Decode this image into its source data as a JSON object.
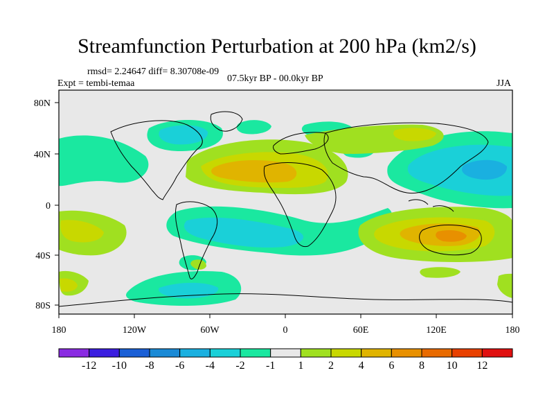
{
  "title": "Streamfunction Perturbation at 200 hPa (km2/s)",
  "stats": "rmsd= 2.24647 diff= 8.30708e-09",
  "experiment": "Expt = tembi-temaa",
  "period": "07.5kyr BP - 00.0kyr BP",
  "season": "JJA",
  "lat_ticks": [
    "80N",
    "40N",
    "0",
    "40S",
    "80S"
  ],
  "lon_ticks": [
    "180",
    "120W",
    "60W",
    "0",
    "60E",
    "120E",
    "180"
  ],
  "colorbar": {
    "labels": [
      "-12",
      "-10",
      "-8",
      "-6",
      "-4",
      "-2",
      "-1",
      "1",
      "2",
      "4",
      "6",
      "8",
      "10",
      "12"
    ],
    "colors": [
      "#8a2be2",
      "#3b1ee0",
      "#1a5fd6",
      "#1a8ad6",
      "#1ab0e0",
      "#1ad0d8",
      "#1ae8a0",
      "#e8e8e8",
      "#a0e020",
      "#c8d800",
      "#e0b400",
      "#e89000",
      "#e86a00",
      "#e84000",
      "#e01010"
    ]
  },
  "colors": {
    "background": "#e8e8e8",
    "land_outline": "#000000"
  }
}
